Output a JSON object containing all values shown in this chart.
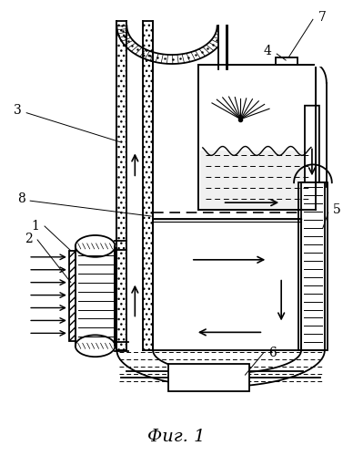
{
  "title": "Фиг. 1",
  "bg_color": "#ffffff",
  "fig_width": 3.88,
  "fig_height": 5.0,
  "dpi": 100
}
